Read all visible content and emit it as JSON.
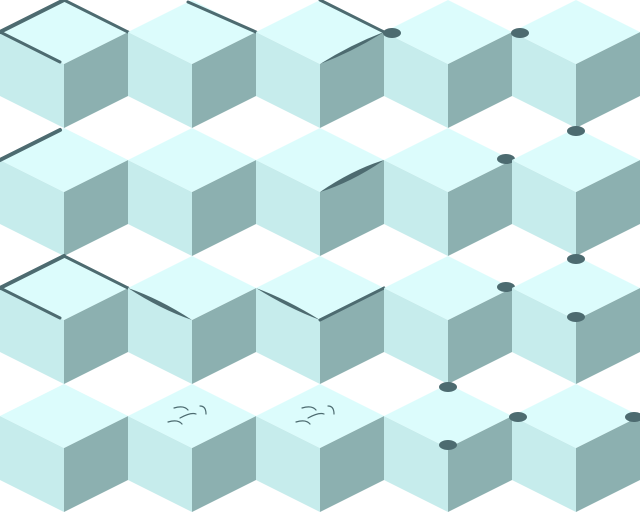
{
  "board": {
    "type": "isometric-cube-tile-grid",
    "rows": 4,
    "columns": 5,
    "colors": {
      "background": "#ffffff",
      "cube_top": "#dcfcfc",
      "cube_left": "#c6ecec",
      "cube_right": "#8cb0b0",
      "edge_line": "#4d6b70",
      "crack_line": "#4d6b70"
    },
    "tiles": [
      {
        "row": 1,
        "col": 1,
        "marking": "top-outline-ribbon"
      },
      {
        "row": 1,
        "col": 2,
        "marking": "upper-right-edge-line"
      },
      {
        "row": 1,
        "col": 3,
        "marking": "upper-and-right-edge-line"
      },
      {
        "row": 1,
        "col": 4,
        "marking": "left-corner-notch"
      },
      {
        "row": 1,
        "col": 5,
        "marking": "left-corner-notch"
      },
      {
        "row": 2,
        "col": 1,
        "marking": "upper-left-edge-line"
      },
      {
        "row": 2,
        "col": 2,
        "marking": "none"
      },
      {
        "row": 2,
        "col": 3,
        "marking": "lower-right-edge-ribbon"
      },
      {
        "row": 2,
        "col": 4,
        "marking": "right-corner-notch"
      },
      {
        "row": 2,
        "col": 5,
        "marking": "top-corner-notch"
      },
      {
        "row": 3,
        "col": 1,
        "marking": "top-outline-ribbon"
      },
      {
        "row": 3,
        "col": 2,
        "marking": "lower-left-edge-ribbon"
      },
      {
        "row": 3,
        "col": 3,
        "marking": "lower-and-right-edge-ribbon"
      },
      {
        "row": 3,
        "col": 4,
        "marking": "right-corner-notch"
      },
      {
        "row": 3,
        "col": 5,
        "marking": "top-and-bottom-notch"
      },
      {
        "row": 4,
        "col": 1,
        "marking": "none"
      },
      {
        "row": 4,
        "col": 2,
        "marking": "scratched-top"
      },
      {
        "row": 4,
        "col": 3,
        "marking": "scratched-top"
      },
      {
        "row": 4,
        "col": 4,
        "marking": "top-and-bottom-notch"
      },
      {
        "row": 4,
        "col": 5,
        "marking": "left-and-right-notch"
      }
    ]
  }
}
